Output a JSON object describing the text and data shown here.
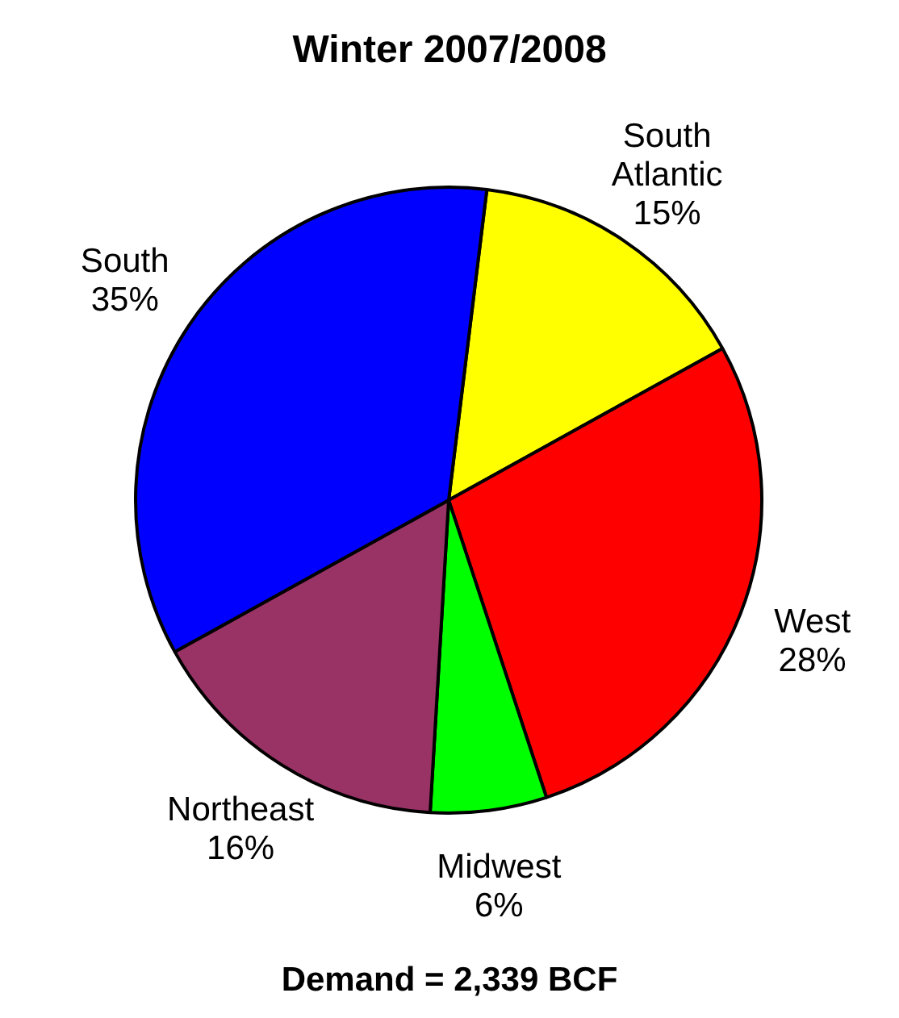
{
  "chart_data": {
    "type": "pie",
    "title": "Winter 2007/2008",
    "categories": [
      "South Atlantic",
      "West",
      "Midwest",
      "Northeast",
      "South"
    ],
    "values": [
      15,
      28,
      6,
      16,
      35
    ],
    "colors": [
      "#ffff00",
      "#ff0000",
      "#00ff00",
      "#993366",
      "#0000ff"
    ],
    "value_labels": [
      "15%",
      "28%",
      "6%",
      "16%",
      "35%"
    ],
    "legend": false,
    "annotations": [
      "Demand = 2,339 BCF"
    ]
  }
}
